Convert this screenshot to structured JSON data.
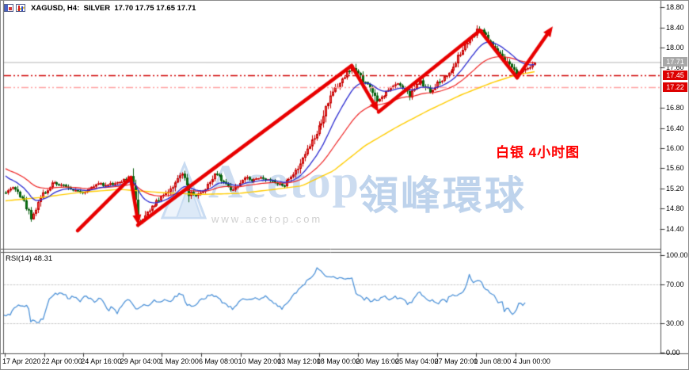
{
  "window": {
    "title_text": "XAGUSD, H4:  SILVER  17.70 17.75 17.65 17.71"
  },
  "annotation": {
    "text": "白银 4小时图",
    "color": "#ff0000"
  },
  "watermark": {
    "brand": "Acetop",
    "brand_cjk": "領峰環球",
    "url": "www.acetop.com"
  },
  "price_axis": {
    "tick_labels": [
      "18.80",
      "18.40",
      "18.00",
      "17.60",
      "16.80",
      "16.40",
      "16.00",
      "15.60",
      "15.20",
      "14.80",
      "14.40"
    ],
    "current_price": {
      "label": "17.71",
      "bg": "#a8a8a8"
    },
    "levels": [
      {
        "label": "17.45",
        "bg": "#dd0000"
      },
      {
        "label": "17.22",
        "bg": "#dd0000"
      }
    ]
  },
  "time_axis": {
    "labels": [
      "17 Apr 2020",
      "22 Apr 00:00",
      "24 Apr 16:00",
      "29 Apr 04:00",
      "1 May 20:00",
      "6 May 08:00",
      "10 May 20:00",
      "13 May 12:00",
      "18 May 00:00",
      "20 May 16:00",
      "25 May 04:00",
      "27 May 20:00",
      "1 Jun 08:00",
      "4 Jun 00:00"
    ]
  },
  "rsi_panel": {
    "indicator_label": "RSI(14) 48.31",
    "tick_labels": [
      "100.00",
      "70.00",
      "30.00",
      "0.00"
    ]
  },
  "chart_data": [
    {
      "type": "candlestick",
      "symbol": "XAGUSD",
      "timeframe": "H4",
      "instrument": "SILVER",
      "last_ohlc": {
        "open": 17.7,
        "high": 17.75,
        "low": 17.65,
        "close": 17.71
      },
      "ylim": [
        14.0,
        18.85
      ],
      "y_ticks": [
        18.8,
        18.4,
        18.0,
        17.6,
        16.8,
        16.4,
        16.0,
        15.6,
        15.2,
        14.8,
        14.4
      ],
      "x_labels": [
        "17 Apr 2020",
        "22 Apr 00:00",
        "24 Apr 16:00",
        "29 Apr 04:00",
        "1 May 20:00",
        "6 May 08:00",
        "10 May 20:00",
        "13 May 12:00",
        "18 May 00:00",
        "20 May 16:00",
        "25 May 04:00",
        "27 May 20:00",
        "1 Jun 08:00",
        "4 Jun 00:00"
      ],
      "candle_colors": {
        "bull": "#f34b4b",
        "bull_border": "#c40000",
        "bear": "#0b7d14",
        "bear_border": "#065c0c"
      },
      "ma_colors": {
        "fast_blue": "#2a2ad0",
        "slow_red": "#ee2222",
        "slowest_yellow": "#ffcc00"
      },
      "price_path": [
        [
          4,
          15.1
        ],
        [
          10,
          15.18
        ],
        [
          16,
          15.22
        ],
        [
          22,
          15.1
        ],
        [
          28,
          14.98
        ],
        [
          34,
          14.78
        ],
        [
          39,
          14.62
        ],
        [
          44,
          14.82
        ],
        [
          50,
          15.02
        ],
        [
          58,
          15.18
        ],
        [
          66,
          15.32
        ],
        [
          75,
          15.28
        ],
        [
          85,
          15.2
        ],
        [
          95,
          15.15
        ],
        [
          105,
          15.12
        ],
        [
          115,
          15.22
        ],
        [
          125,
          15.32
        ],
        [
          133,
          15.24
        ],
        [
          141,
          15.3
        ],
        [
          150,
          15.34
        ],
        [
          158,
          15.38
        ],
        [
          164,
          15.44
        ],
        [
          169,
          15.05
        ],
        [
          173,
          14.65
        ],
        [
          177,
          14.54
        ],
        [
          183,
          14.7
        ],
        [
          190,
          14.83
        ],
        [
          198,
          14.95
        ],
        [
          207,
          15.08
        ],
        [
          215,
          15.2
        ],
        [
          224,
          15.42
        ],
        [
          230,
          15.52
        ],
        [
          238,
          15.1
        ],
        [
          246,
          15.06
        ],
        [
          254,
          15.14
        ],
        [
          262,
          15.3
        ],
        [
          270,
          15.5
        ],
        [
          277,
          15.4
        ],
        [
          285,
          15.28
        ],
        [
          292,
          15.12
        ],
        [
          300,
          15.3
        ],
        [
          308,
          15.42
        ],
        [
          316,
          15.36
        ],
        [
          324,
          15.42
        ],
        [
          332,
          15.36
        ],
        [
          340,
          15.38
        ],
        [
          348,
          15.3
        ],
        [
          356,
          15.24
        ],
        [
          364,
          15.4
        ],
        [
          372,
          15.55
        ],
        [
          380,
          15.8
        ],
        [
          388,
          16.0
        ],
        [
          396,
          16.25
        ],
        [
          404,
          16.5
        ],
        [
          411,
          16.8
        ],
        [
          418,
          17.05
        ],
        [
          425,
          17.25
        ],
        [
          432,
          17.42
        ],
        [
          439,
          17.55
        ],
        [
          445,
          17.63
        ],
        [
          451,
          17.48
        ],
        [
          457,
          17.35
        ],
        [
          463,
          17.28
        ],
        [
          469,
          17.12
        ],
        [
          475,
          16.88
        ],
        [
          481,
          17.02
        ],
        [
          488,
          17.12
        ],
        [
          495,
          17.22
        ],
        [
          502,
          17.28
        ],
        [
          509,
          17.18
        ],
        [
          516,
          17.02
        ],
        [
          523,
          17.22
        ],
        [
          530,
          17.32
        ],
        [
          537,
          17.2
        ],
        [
          544,
          17.12
        ],
        [
          551,
          17.28
        ],
        [
          558,
          17.38
        ],
        [
          565,
          17.5
        ],
        [
          572,
          17.65
        ],
        [
          579,
          17.85
        ],
        [
          586,
          18.02
        ],
        [
          593,
          18.18
        ],
        [
          599,
          18.3
        ],
        [
          605,
          18.4
        ],
        [
          611,
          18.28
        ],
        [
          617,
          18.12
        ],
        [
          623,
          18.02
        ],
        [
          629,
          17.92
        ],
        [
          635,
          17.78
        ],
        [
          641,
          17.65
        ],
        [
          647,
          17.55
        ],
        [
          652,
          17.46
        ],
        [
          657,
          17.52
        ],
        [
          662,
          17.6
        ],
        [
          666,
          17.56
        ],
        [
          670,
          17.64
        ],
        [
          674,
          17.7
        ]
      ],
      "yellow_ma": [
        [
          4,
          14.95
        ],
        [
          50,
          15.02
        ],
        [
          100,
          15.12
        ],
        [
          150,
          15.18
        ],
        [
          200,
          15.12
        ],
        [
          250,
          15.08
        ],
        [
          300,
          15.1
        ],
        [
          340,
          15.17
        ],
        [
          380,
          15.25
        ],
        [
          420,
          15.55
        ],
        [
          460,
          16.05
        ],
        [
          500,
          16.42
        ],
        [
          540,
          16.75
        ],
        [
          580,
          17.05
        ],
        [
          620,
          17.3
        ],
        [
          650,
          17.45
        ],
        [
          674,
          17.52
        ]
      ],
      "levels": [
        {
          "price": 17.71,
          "style": "solid",
          "color": "#b3b3b3",
          "label": "17.71"
        },
        {
          "price": 17.45,
          "style": "dashdot",
          "color": "#cf0000",
          "label": "17.45"
        },
        {
          "price": 17.22,
          "style": "dashdot",
          "color": "#ffa3a3",
          "label": "17.22"
        }
      ],
      "trend_lines": [
        {
          "from": [
            97,
            14.36
          ],
          "to": [
            164,
            15.41
          ],
          "arrow": false
        },
        {
          "from": [
            164,
            15.41
          ],
          "to": [
            174,
            14.47
          ],
          "arrow": true
        },
        {
          "from": [
            173,
            14.47
          ],
          "to": [
            443,
            17.64
          ],
          "arrow": false
        },
        {
          "from": [
            443,
            17.64
          ],
          "to": [
            477,
            16.72
          ],
          "arrow": true
        },
        {
          "from": [
            477,
            16.72
          ],
          "to": [
            605,
            18.34
          ],
          "arrow": false
        },
        {
          "from": [
            605,
            18.34
          ],
          "to": [
            652,
            17.4
          ],
          "arrow": false
        },
        {
          "from": [
            652,
            17.4
          ],
          "to": [
            697,
            18.42
          ],
          "arrow": true
        }
      ],
      "trend_color": "#e80000"
    },
    {
      "type": "line",
      "name": "RSI",
      "period": 14,
      "current_value": 48.31,
      "ylim": [
        0,
        100
      ],
      "overbought": 70,
      "oversold": 30,
      "line_color": "#4f93d8",
      "points": [
        [
          4,
          38
        ],
        [
          12,
          40
        ],
        [
          18,
          46
        ],
        [
          24,
          49
        ],
        [
          30,
          48
        ],
        [
          34,
          50
        ],
        [
          38,
          32
        ],
        [
          44,
          33
        ],
        [
          48,
          31
        ],
        [
          54,
          36
        ],
        [
          62,
          57
        ],
        [
          70,
          60
        ],
        [
          78,
          62
        ],
        [
          85,
          55
        ],
        [
          92,
          58
        ],
        [
          100,
          52
        ],
        [
          106,
          58
        ],
        [
          112,
          55
        ],
        [
          118,
          52
        ],
        [
          124,
          56
        ],
        [
          130,
          51
        ],
        [
          136,
          42
        ],
        [
          141,
          48
        ],
        [
          146,
          40
        ],
        [
          152,
          46
        ],
        [
          158,
          52
        ],
        [
          163,
          55
        ],
        [
          168,
          47
        ],
        [
          173,
          44
        ],
        [
          180,
          50
        ],
        [
          187,
          48
        ],
        [
          194,
          53
        ],
        [
          200,
          50
        ],
        [
          207,
          55
        ],
        [
          214,
          52
        ],
        [
          221,
          58
        ],
        [
          228,
          61
        ],
        [
          235,
          50
        ],
        [
          242,
          48
        ],
        [
          250,
          52
        ],
        [
          258,
          56
        ],
        [
          265,
          60
        ],
        [
          272,
          58
        ],
        [
          280,
          52
        ],
        [
          287,
          48
        ],
        [
          294,
          44
        ],
        [
          300,
          52
        ],
        [
          307,
          56
        ],
        [
          314,
          53
        ],
        [
          321,
          57
        ],
        [
          328,
          54
        ],
        [
          335,
          58
        ],
        [
          342,
          52
        ],
        [
          349,
          48
        ],
        [
          356,
          45
        ],
        [
          362,
          52
        ],
        [
          369,
          58
        ],
        [
          376,
          64
        ],
        [
          383,
          70
        ],
        [
          390,
          76
        ],
        [
          396,
          82
        ],
        [
          400,
          88
        ],
        [
          404,
          84
        ],
        [
          409,
          79
        ],
        [
          414,
          77
        ],
        [
          419,
          78
        ],
        [
          424,
          76
        ],
        [
          429,
          77
        ],
        [
          434,
          75
        ],
        [
          439,
          77
        ],
        [
          444,
          75
        ],
        [
          448,
          62
        ],
        [
          453,
          59
        ],
        [
          458,
          54
        ],
        [
          463,
          56
        ],
        [
          467,
          51
        ],
        [
          472,
          56
        ],
        [
          477,
          52
        ],
        [
          482,
          58
        ],
        [
          487,
          56
        ],
        [
          492,
          53
        ],
        [
          497,
          58
        ],
        [
          502,
          54
        ],
        [
          507,
          57
        ],
        [
          512,
          51
        ],
        [
          517,
          50
        ],
        [
          522,
          55
        ],
        [
          527,
          62
        ],
        [
          532,
          60
        ],
        [
          537,
          55
        ],
        [
          542,
          54
        ],
        [
          548,
          53
        ],
        [
          553,
          50
        ],
        [
          558,
          56
        ],
        [
          563,
          53
        ],
        [
          568,
          59
        ],
        [
          573,
          57
        ],
        [
          578,
          60
        ],
        [
          583,
          60
        ],
        [
          588,
          70
        ],
        [
          592,
          80
        ],
        [
          596,
          72
        ],
        [
          600,
          75
        ],
        [
          605,
          73
        ],
        [
          610,
          68
        ],
        [
          615,
          64
        ],
        [
          620,
          60
        ],
        [
          625,
          57
        ],
        [
          629,
          50
        ],
        [
          633,
          52
        ],
        [
          636,
          41
        ],
        [
          640,
          46
        ],
        [
          644,
          41
        ],
        [
          648,
          39
        ],
        [
          652,
          47
        ],
        [
          655,
          51
        ],
        [
          658,
          48
        ],
        [
          661,
          51
        ],
        [
          664,
          48.3
        ]
      ]
    }
  ]
}
